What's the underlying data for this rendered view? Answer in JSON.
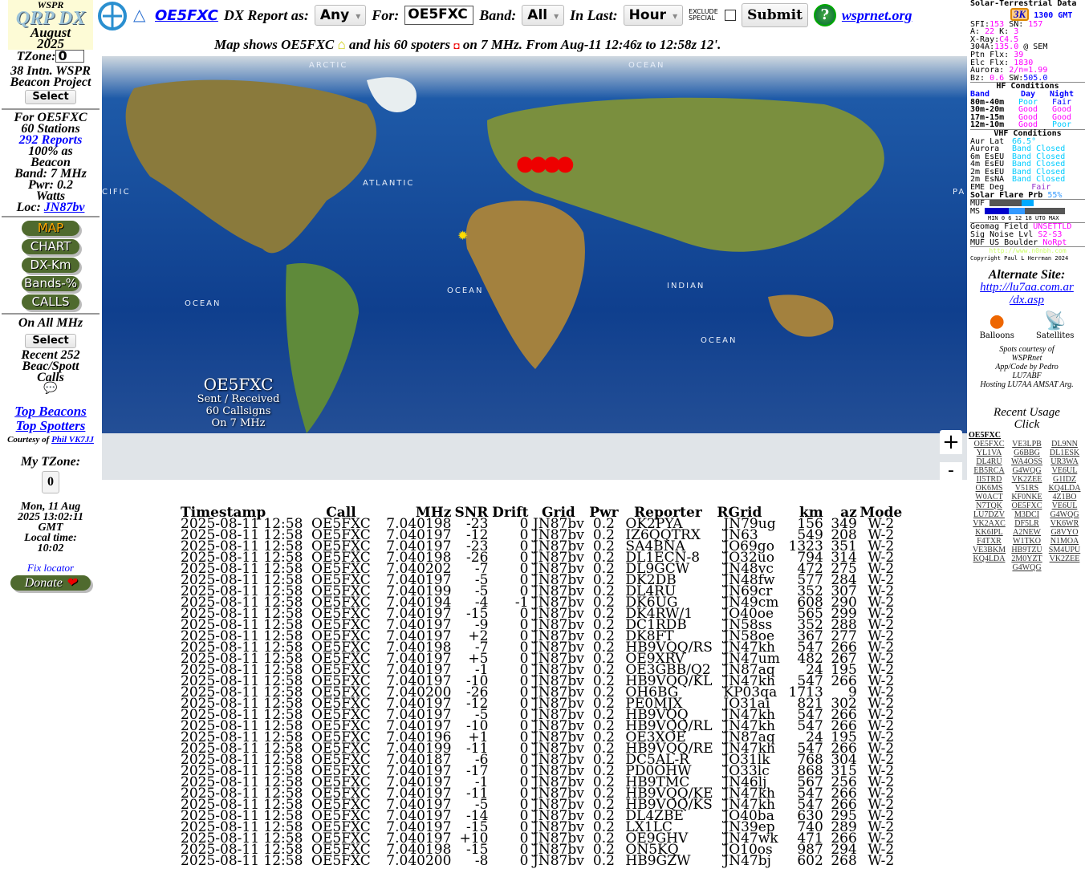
{
  "header": {
    "logo_top": "WSPR",
    "logo_main": "QRP DX",
    "logo_month": "August",
    "logo_year": "2025",
    "callsign_link": "OE5FXC",
    "report_as_label": "DX Report as:",
    "report_as_value": "Any",
    "for_label": "For:",
    "for_value": "OE5FXC",
    "band_label": "Band:",
    "band_value": "All",
    "in_last_label": "In Last:",
    "in_last_value": "Hour",
    "exclude_special_label": "EXCLUDE SPECIAL",
    "exclude_special_checked": false,
    "submit_label": "Submit",
    "help_icon": "question-icon",
    "wsprnet_link": "wsprnet.org",
    "threek_badge": "3K"
  },
  "subtitle": {
    "part1": "Map shows OE5FXC",
    "part2": "and his 60 spoters",
    "part3": "on 7 MHz. From Aug-11 12:46z to 12:58z 12'."
  },
  "left": {
    "tzone_label": "TZone:",
    "tzone_value": "0",
    "project_line1": "38 Intn. WSPR",
    "project_line2": "Beacon Project",
    "select_label": "Select",
    "for_call": "For OE5FXC",
    "stations": "60 Stations",
    "reports_link": "292 Reports",
    "beacon_pct": "100% as",
    "beacon_word": "Beacon",
    "band": "Band: 7 MHz",
    "pwr": "Pwr: 0.2",
    "watts": "Watts",
    "loc_label": "Loc:",
    "loc_link": "JN87bv",
    "nav": [
      "MAP",
      "CHART",
      "DX-Km",
      "Bands-%",
      "CALLS"
    ],
    "all_mhz": "On All MHz",
    "select2_label": "Select",
    "recent_line1": "Recent 252",
    "recent_line2": "Beac/Spott",
    "recent_line3": "Calls",
    "top_beacons": "Top Beacons",
    "top_spotters": "Top Spotters",
    "courtesy": "Courtesy of",
    "phil_link": "Phil VK7JJ",
    "my_tzone_label": "My TZone:",
    "my_tzone_value": "0",
    "date_line": "Mon, 11 Aug",
    "datetime_line": "2025 13:02:11",
    "gmt": "GMT",
    "local_label": "Local time:",
    "local_time": "10:02",
    "fix_locator": "Fix locator",
    "donate_label": "Donate"
  },
  "map": {
    "labels": [
      "ARCTIC",
      "OCEAN",
      "ATLANTIC",
      "CIFIC",
      "OCEAN",
      "OCEAN",
      "INDIAN",
      "OCEAN",
      "PA"
    ],
    "overlay_call": "OE5FXC",
    "overlay_sent": "Sent / Received",
    "overlay_count": "60 Callsigns",
    "overlay_band": "On 7 MHz",
    "zoom_in": "+",
    "zoom_out": "-"
  },
  "solar": {
    "title": "Solar-Terrestrial Data",
    "time": "1300 GMT",
    "sfi_label": "SFI:",
    "sfi": "153",
    "sn_label": "SN:",
    "sn": "157",
    "a_label": "A:",
    "a": "22",
    "k_label": "K:",
    "k": "3",
    "xray_label": "X-Ray:",
    "xray": "C4.5",
    "f304_label": "304A:",
    "f304": "135.0",
    "f304_src": "@ SEM",
    "ptn_label": "Ptn Flx:",
    "ptn": "39",
    "elc_label": "Elc Flx:",
    "elc": "1830",
    "aurora_label": "Aurora:",
    "aurora": "2/n=1.99",
    "bz_label": "Bz:",
    "bz": "0.6",
    "sw_label": "SW:",
    "sw": "505.0",
    "hf_title": "HF Conditions",
    "hf_head": [
      "Band",
      "Day",
      "Night"
    ],
    "hf_rows": [
      [
        "80m-40m",
        "Poor",
        "Fair"
      ],
      [
        "30m-20m",
        "Good",
        "Good"
      ],
      [
        "17m-15m",
        "Good",
        "Good"
      ],
      [
        "12m-10m",
        "Good",
        "Poor"
      ]
    ],
    "vhf_title": "VHF Conditions",
    "vhf_rows": [
      [
        "Aur Lat",
        "66.5°"
      ],
      [
        "Aurora",
        "Band Closed"
      ],
      [
        "6m EsEU",
        "Band Closed"
      ],
      [
        "4m EsEU",
        "Band Closed"
      ],
      [
        "2m EsEU",
        "Band Closed"
      ],
      [
        "2m EsNA",
        "Band Closed"
      ]
    ],
    "eme_label": "EME Deg",
    "eme": "Fair",
    "flare_label": "Solar Flare Prb",
    "flare": "55%",
    "muf_label": "MUF",
    "ms_label": "MS",
    "scale": "0 6 12 18 UTO",
    "scale_min": "MIN",
    "scale_max": "MAX",
    "geomag_label": "Geomag Field",
    "geomag": "UNSETTLD",
    "noise_label": "Sig Noise Lvl",
    "noise": "S2-S3",
    "mufus_label": "MUF US Boulder",
    "mufus": "NoRpt",
    "url": "http://www.n0nbh.com",
    "copyright": "Copyright Paul L Herrman 2024"
  },
  "right": {
    "alt_title": "Alternate Site:",
    "alt_link_1": "http://lu7aa.com.ar",
    "alt_link_2": "/dx.asp",
    "balloons": "Balloons",
    "satellites": "Satellites",
    "credits1": "Spots courtesy of",
    "credits2": "WSPRnet",
    "credits3": "App/Code by Pedro",
    "credits4": "LU7ABF",
    "credits5": "Hosting LU7AA AMSAT Arg.",
    "recent_title": "Recent Usage",
    "recent_click": "Click",
    "recent_head": "OE5FXC",
    "recent_calls": [
      "OE5FXC",
      "VE3LPB",
      "DL9NN",
      "YL1VA",
      "G6BBG",
      "DL1ESK",
      "DL4RU",
      "WA4OSS",
      "UR3WA",
      "EB5RCA",
      "G4WQG",
      "VE6UL",
      "II5TRD",
      "VK2ZEE",
      "G1IDZ",
      "OK6MS",
      "V51RS",
      "KQ4LDA",
      "W0ACT",
      "KF0NKE",
      "4Z1BO",
      "N7TQK",
      "OE5FXC",
      "VE6UL",
      "LU7DZV",
      "M3DCI",
      "G4WQG",
      "VK2AXC",
      "DF5LR",
      "VK6WR",
      "KK6IPL",
      "A2NEW",
      "G8VYO",
      "F4TXR",
      "W1TKO",
      "N1MOA",
      "VE3BKM",
      "HB9TZU",
      "SM4UPU",
      "KQ4LDA",
      "2M0YZT",
      "VK2ZEE",
      "G4WQG"
    ]
  },
  "table": {
    "headers": [
      "Timestamp",
      "Call",
      "MHz",
      "SNR",
      "Drift",
      "Grid",
      "Pwr",
      "Reporter",
      "RGrid",
      "km",
      "az",
      "Mode"
    ],
    "rows": [
      [
        "2025-08-11 12:58",
        "OE5FXC",
        "7.040198",
        "-23",
        "0",
        "JN87bv",
        "0.2",
        "OK2PYA",
        "JN79ug",
        "156",
        "349",
        "W-2"
      ],
      [
        "2025-08-11 12:58",
        "OE5FXC",
        "7.040197",
        "-12",
        "0",
        "JN87bv",
        "0.2",
        "IZ6QQTRX",
        "JN63",
        "549",
        "208",
        "W-2"
      ],
      [
        "2025-08-11 12:58",
        "OE5FXC",
        "7.040197",
        "-23",
        "0",
        "JN87bv",
        "0.2",
        "SA4BNA",
        "JO69go",
        "1323",
        "351",
        "W-2"
      ],
      [
        "2025-08-11 12:58",
        "OE5FXC",
        "7.040198",
        "-26",
        "0",
        "JN87bv",
        "0.2",
        "DL1ECN-8",
        "JO32uo",
        "794",
        "314",
        "W-2"
      ],
      [
        "2025-08-11 12:58",
        "OE5FXC",
        "7.040202",
        "-7",
        "0",
        "JN87bv",
        "0.2",
        "DL9GCW",
        "JN48vc",
        "472",
        "275",
        "W-2"
      ],
      [
        "2025-08-11 12:58",
        "OE5FXC",
        "7.040197",
        "-5",
        "0",
        "JN87bv",
        "0.2",
        "DK2DB",
        "JN48fw",
        "577",
        "284",
        "W-2"
      ],
      [
        "2025-08-11 12:58",
        "OE5FXC",
        "7.040199",
        "-5",
        "0",
        "JN87bv",
        "0.2",
        "DL4RU",
        "JN69cr",
        "352",
        "307",
        "W-2"
      ],
      [
        "2025-08-11 12:58",
        "OE5FXC",
        "7.040194",
        "-4",
        "-1",
        "JN87bv",
        "0.2",
        "DK6UG",
        "JN49cm",
        "608",
        "290",
        "W-2"
      ],
      [
        "2025-08-11 12:58",
        "OE5FXC",
        "7.040197",
        "-15",
        "0",
        "JN87bv",
        "0.2",
        "DK4RW/1",
        "JO40oe",
        "565",
        "299",
        "W-2"
      ],
      [
        "2025-08-11 12:58",
        "OE5FXC",
        "7.040197",
        "-9",
        "0",
        "JN87bv",
        "0.2",
        "DC1RDB",
        "JN58ss",
        "352",
        "288",
        "W-2"
      ],
      [
        "2025-08-11 12:58",
        "OE5FXC",
        "7.040197",
        "+2",
        "0",
        "JN87bv",
        "0.2",
        "DK8FT",
        "JN58oe",
        "367",
        "277",
        "W-2"
      ],
      [
        "2025-08-11 12:58",
        "OE5FXC",
        "7.040198",
        "-7",
        "0",
        "JN87bv",
        "0.2",
        "HB9VQQ/RS",
        "JN47kh",
        "547",
        "266",
        "W-2"
      ],
      [
        "2025-08-11 12:58",
        "OE5FXC",
        "7.040197",
        "+5",
        "0",
        "JN87bv",
        "0.2",
        "OE9XRV",
        "JN47um",
        "482",
        "267",
        "W-2"
      ],
      [
        "2025-08-11 12:58",
        "OE5FXC",
        "7.040197",
        "-1",
        "0",
        "JN87bv",
        "0.2",
        "OE3GBB/Q2",
        "JN87aq",
        "24",
        "195",
        "W-2"
      ],
      [
        "2025-08-11 12:58",
        "OE5FXC",
        "7.040197",
        "-10",
        "0",
        "JN87bv",
        "0.2",
        "HB9VQQ/KL",
        "JN47kh",
        "547",
        "266",
        "W-2"
      ],
      [
        "2025-08-11 12:58",
        "OE5FXC",
        "7.040200",
        "-26",
        "0",
        "JN87bv",
        "0.2",
        "OH6BG",
        "KP03qa",
        "1713",
        "9",
        "W-2"
      ],
      [
        "2025-08-11 12:58",
        "OE5FXC",
        "7.040197",
        "-12",
        "0",
        "JN87bv",
        "0.2",
        "PE0MJX",
        "JO31ai",
        "821",
        "302",
        "W-2"
      ],
      [
        "2025-08-11 12:58",
        "OE5FXC",
        "7.040197",
        "-5",
        "0",
        "JN87bv",
        "0.2",
        "HB9VQQ",
        "JN47kh",
        "547",
        "266",
        "W-2"
      ],
      [
        "2025-08-11 12:58",
        "OE5FXC",
        "7.040197",
        "-10",
        "0",
        "JN87bv",
        "0.2",
        "HB9VQQ/RL",
        "JN47kh",
        "547",
        "266",
        "W-2"
      ],
      [
        "2025-08-11 12:58",
        "OE5FXC",
        "7.040196",
        "+1",
        "0",
        "JN87bv",
        "0.2",
        "OE3XOE",
        "JN87aq",
        "24",
        "195",
        "W-2"
      ],
      [
        "2025-08-11 12:58",
        "OE5FXC",
        "7.040199",
        "-11",
        "0",
        "JN87bv",
        "0.2",
        "HB9VQQ/RE",
        "JN47kh",
        "547",
        "266",
        "W-2"
      ],
      [
        "2025-08-11 12:58",
        "OE5FXC",
        "7.040187",
        "-6",
        "0",
        "JN87bv",
        "0.2",
        "DC5AL-R",
        "JO31lk",
        "768",
        "304",
        "W-2"
      ],
      [
        "2025-08-11 12:58",
        "OE5FXC",
        "7.040197",
        "-17",
        "0",
        "JN87bv",
        "0.2",
        "PD0OHW",
        "JO33lc",
        "868",
        "315",
        "W-2"
      ],
      [
        "2025-08-11 12:58",
        "OE5FXC",
        "7.040197",
        "-1",
        "0",
        "JN87bv",
        "0.2",
        "HB9TMC",
        "JN46lj",
        "567",
        "256",
        "W-2"
      ],
      [
        "2025-08-11 12:58",
        "OE5FXC",
        "7.040197",
        "-11",
        "0",
        "JN87bv",
        "0.2",
        "HB9VQQ/KE",
        "JN47kh",
        "547",
        "266",
        "W-2"
      ],
      [
        "2025-08-11 12:58",
        "OE5FXC",
        "7.040197",
        "-5",
        "0",
        "JN87bv",
        "0.2",
        "HB9VQQ/KS",
        "JN47kh",
        "547",
        "266",
        "W-2"
      ],
      [
        "2025-08-11 12:58",
        "OE5FXC",
        "7.040197",
        "-14",
        "0",
        "JN87bv",
        "0.2",
        "DL4ZBE",
        "JO40ba",
        "630",
        "295",
        "W-2"
      ],
      [
        "2025-08-11 12:58",
        "OE5FXC",
        "7.040197",
        "-15",
        "0",
        "JN87bv",
        "0.2",
        "LX1LC",
        "JN39ep",
        "740",
        "289",
        "W-2"
      ],
      [
        "2025-08-11 12:58",
        "OE5FXC",
        "7.040197",
        "+10",
        "0",
        "JN87bv",
        "0.2",
        "OE9GHV",
        "JN47wk",
        "471",
        "266",
        "W-2"
      ],
      [
        "2025-08-11 12:58",
        "OE5FXC",
        "7.040198",
        "-15",
        "0",
        "JN87bv",
        "0.2",
        "ON5KQ",
        "JO10os",
        "987",
        "294",
        "W-2"
      ],
      [
        "2025-08-11 12:58",
        "OE5FXC",
        "7.040200",
        "-8",
        "0",
        "JN87bv",
        "0.2",
        "HB9GZW",
        "JN47bj",
        "602",
        "268",
        "W-2"
      ]
    ]
  }
}
